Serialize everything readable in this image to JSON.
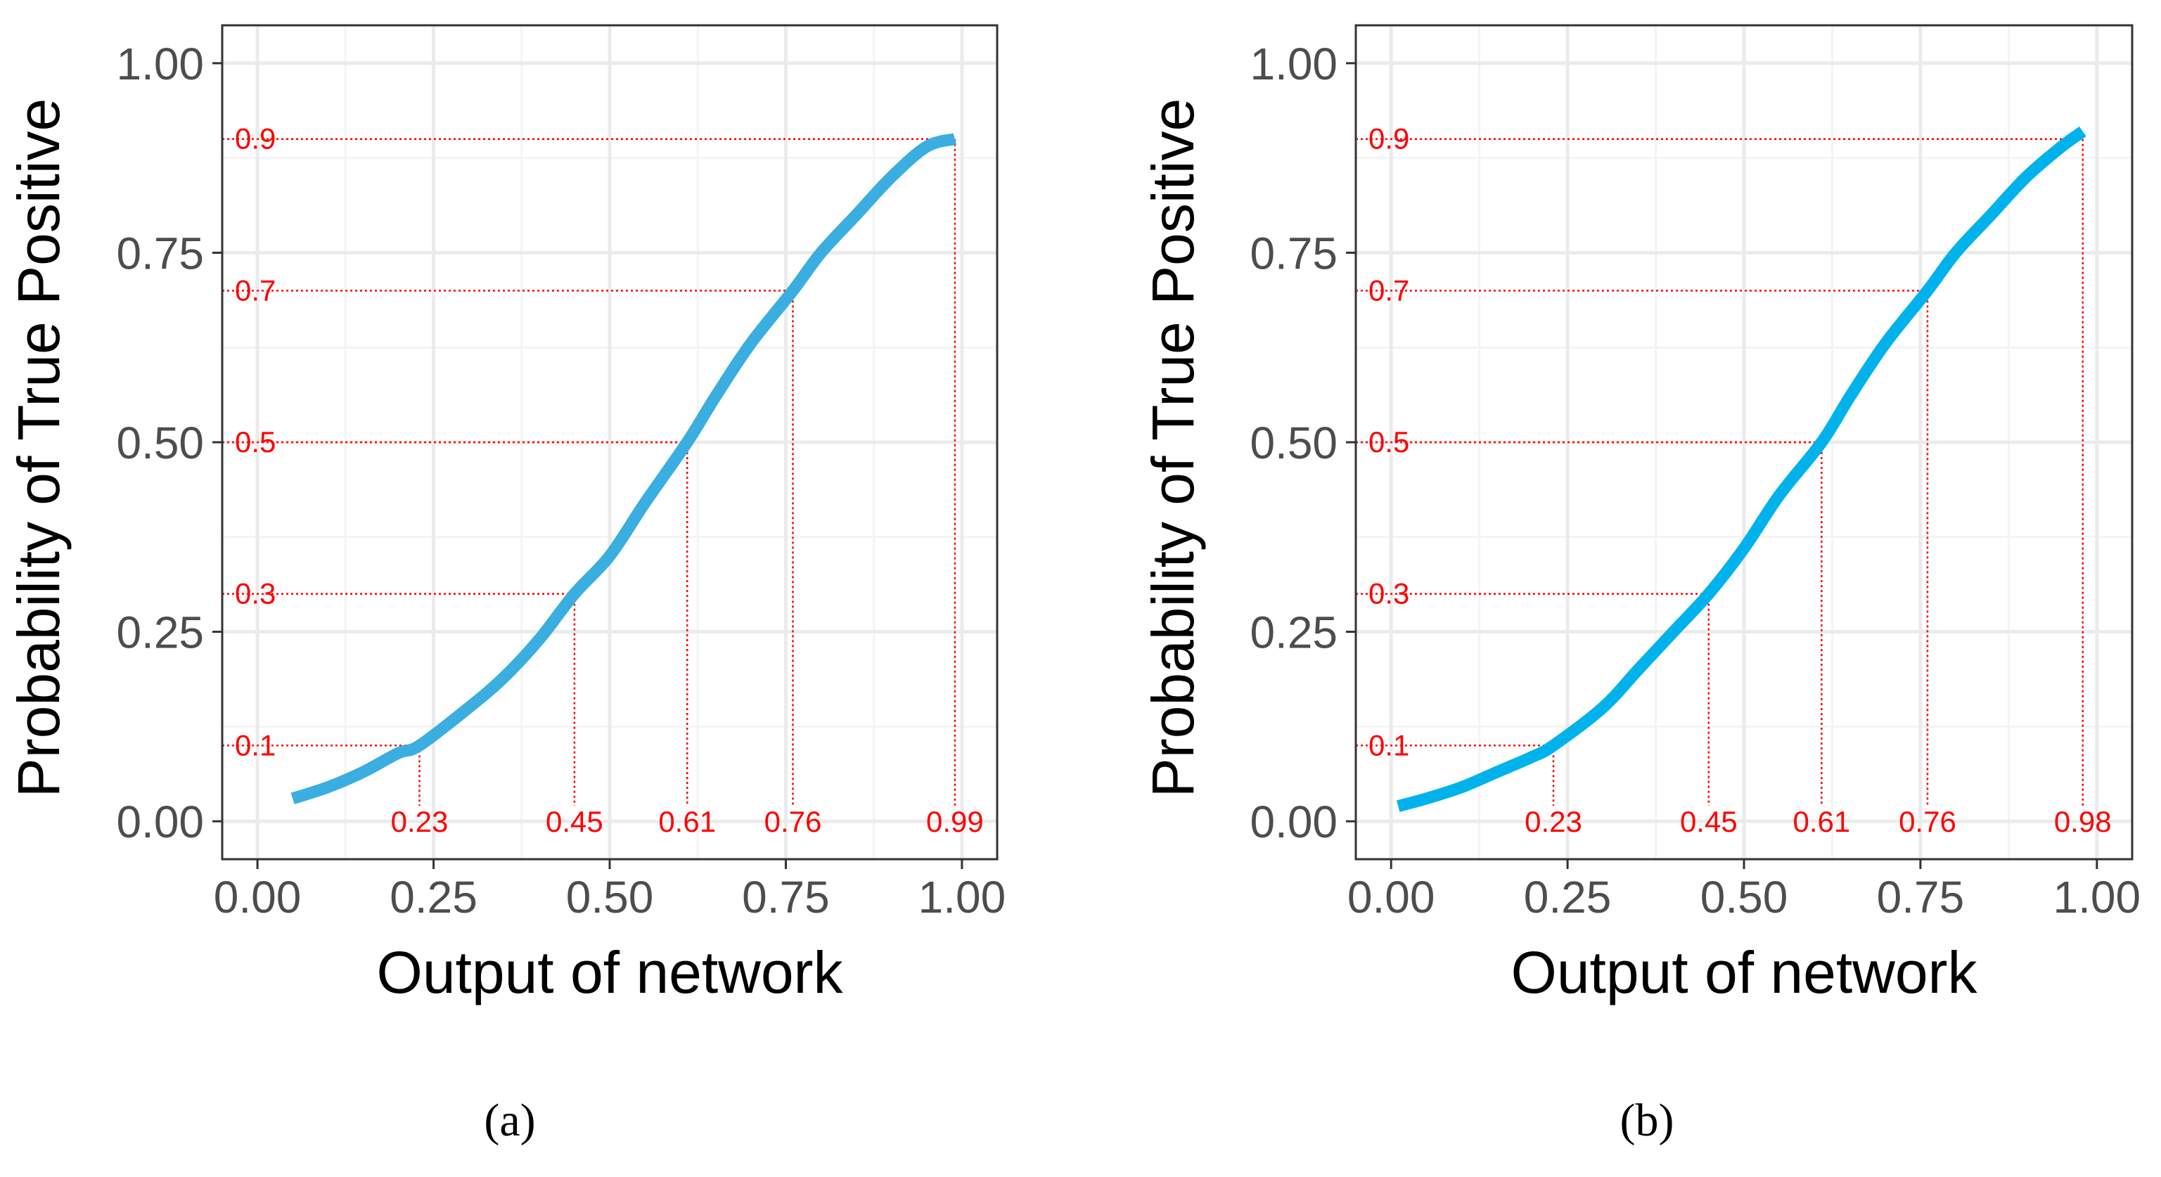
{
  "colors": {
    "curve_a": "#3aaee0",
    "curve_b": "#00b2ec",
    "annotation": "#ff0000",
    "grid_major": "#ebebeb",
    "grid_minor": "#f4f4f4",
    "panel_border": "#333333"
  },
  "chart_data": [
    {
      "type": "line",
      "panel_label": "(a)",
      "xlabel": "Output of network",
      "ylabel": "Probability of True Positive",
      "xlim": [
        0,
        1
      ],
      "ylim": [
        0,
        1
      ],
      "x_ticks": [
        "0.00",
        "0.25",
        "0.50",
        "0.75",
        "1.00"
      ],
      "y_ticks": [
        "0.00",
        "0.25",
        "0.50",
        "0.75",
        "1.00"
      ],
      "grid": true,
      "series": [
        {
          "x": [
            0.05,
            0.1,
            0.15,
            0.2,
            0.23,
            0.3,
            0.35,
            0.4,
            0.45,
            0.5,
            0.55,
            0.61,
            0.65,
            0.7,
            0.76,
            0.8,
            0.85,
            0.9,
            0.95,
            0.99
          ],
          "y": [
            0.03,
            0.045,
            0.065,
            0.09,
            0.1,
            0.15,
            0.19,
            0.24,
            0.3,
            0.35,
            0.42,
            0.5,
            0.56,
            0.63,
            0.7,
            0.75,
            0.8,
            0.85,
            0.89,
            0.9
          ]
        }
      ],
      "annotations": [
        {
          "x": 0.23,
          "y": 0.1,
          "x_label": "0.23",
          "y_label": "0.1"
        },
        {
          "x": 0.45,
          "y": 0.3,
          "x_label": "0.45",
          "y_label": "0.3"
        },
        {
          "x": 0.61,
          "y": 0.5,
          "x_label": "0.61",
          "y_label": "0.5"
        },
        {
          "x": 0.76,
          "y": 0.7,
          "x_label": "0.76",
          "y_label": "0.7"
        },
        {
          "x": 0.99,
          "y": 0.9,
          "x_label": "0.99",
          "y_label": "0.9"
        }
      ]
    },
    {
      "type": "line",
      "panel_label": "(b)",
      "xlabel": "Output of network",
      "ylabel": "Probability of True Positive",
      "xlim": [
        0,
        1
      ],
      "ylim": [
        0,
        1
      ],
      "x_ticks": [
        "0.00",
        "0.25",
        "0.50",
        "0.75",
        "1.00"
      ],
      "y_ticks": [
        "0.00",
        "0.25",
        "0.50",
        "0.75",
        "1.00"
      ],
      "grid": true,
      "series": [
        {
          "x": [
            0.01,
            0.05,
            0.1,
            0.15,
            0.2,
            0.23,
            0.3,
            0.35,
            0.4,
            0.45,
            0.5,
            0.55,
            0.61,
            0.65,
            0.7,
            0.76,
            0.8,
            0.85,
            0.9,
            0.95,
            0.98
          ],
          "y": [
            0.02,
            0.03,
            0.045,
            0.065,
            0.085,
            0.1,
            0.15,
            0.2,
            0.25,
            0.3,
            0.36,
            0.43,
            0.5,
            0.56,
            0.63,
            0.7,
            0.75,
            0.8,
            0.85,
            0.89,
            0.91
          ]
        }
      ],
      "annotations": [
        {
          "x": 0.23,
          "y": 0.1,
          "x_label": "0.23",
          "y_label": "0.1"
        },
        {
          "x": 0.45,
          "y": 0.3,
          "x_label": "0.45",
          "y_label": "0.3"
        },
        {
          "x": 0.61,
          "y": 0.5,
          "x_label": "0.61",
          "y_label": "0.5"
        },
        {
          "x": 0.76,
          "y": 0.7,
          "x_label": "0.76",
          "y_label": "0.7"
        },
        {
          "x": 0.98,
          "y": 0.9,
          "x_label": "0.98",
          "y_label": "0.9"
        }
      ]
    }
  ]
}
